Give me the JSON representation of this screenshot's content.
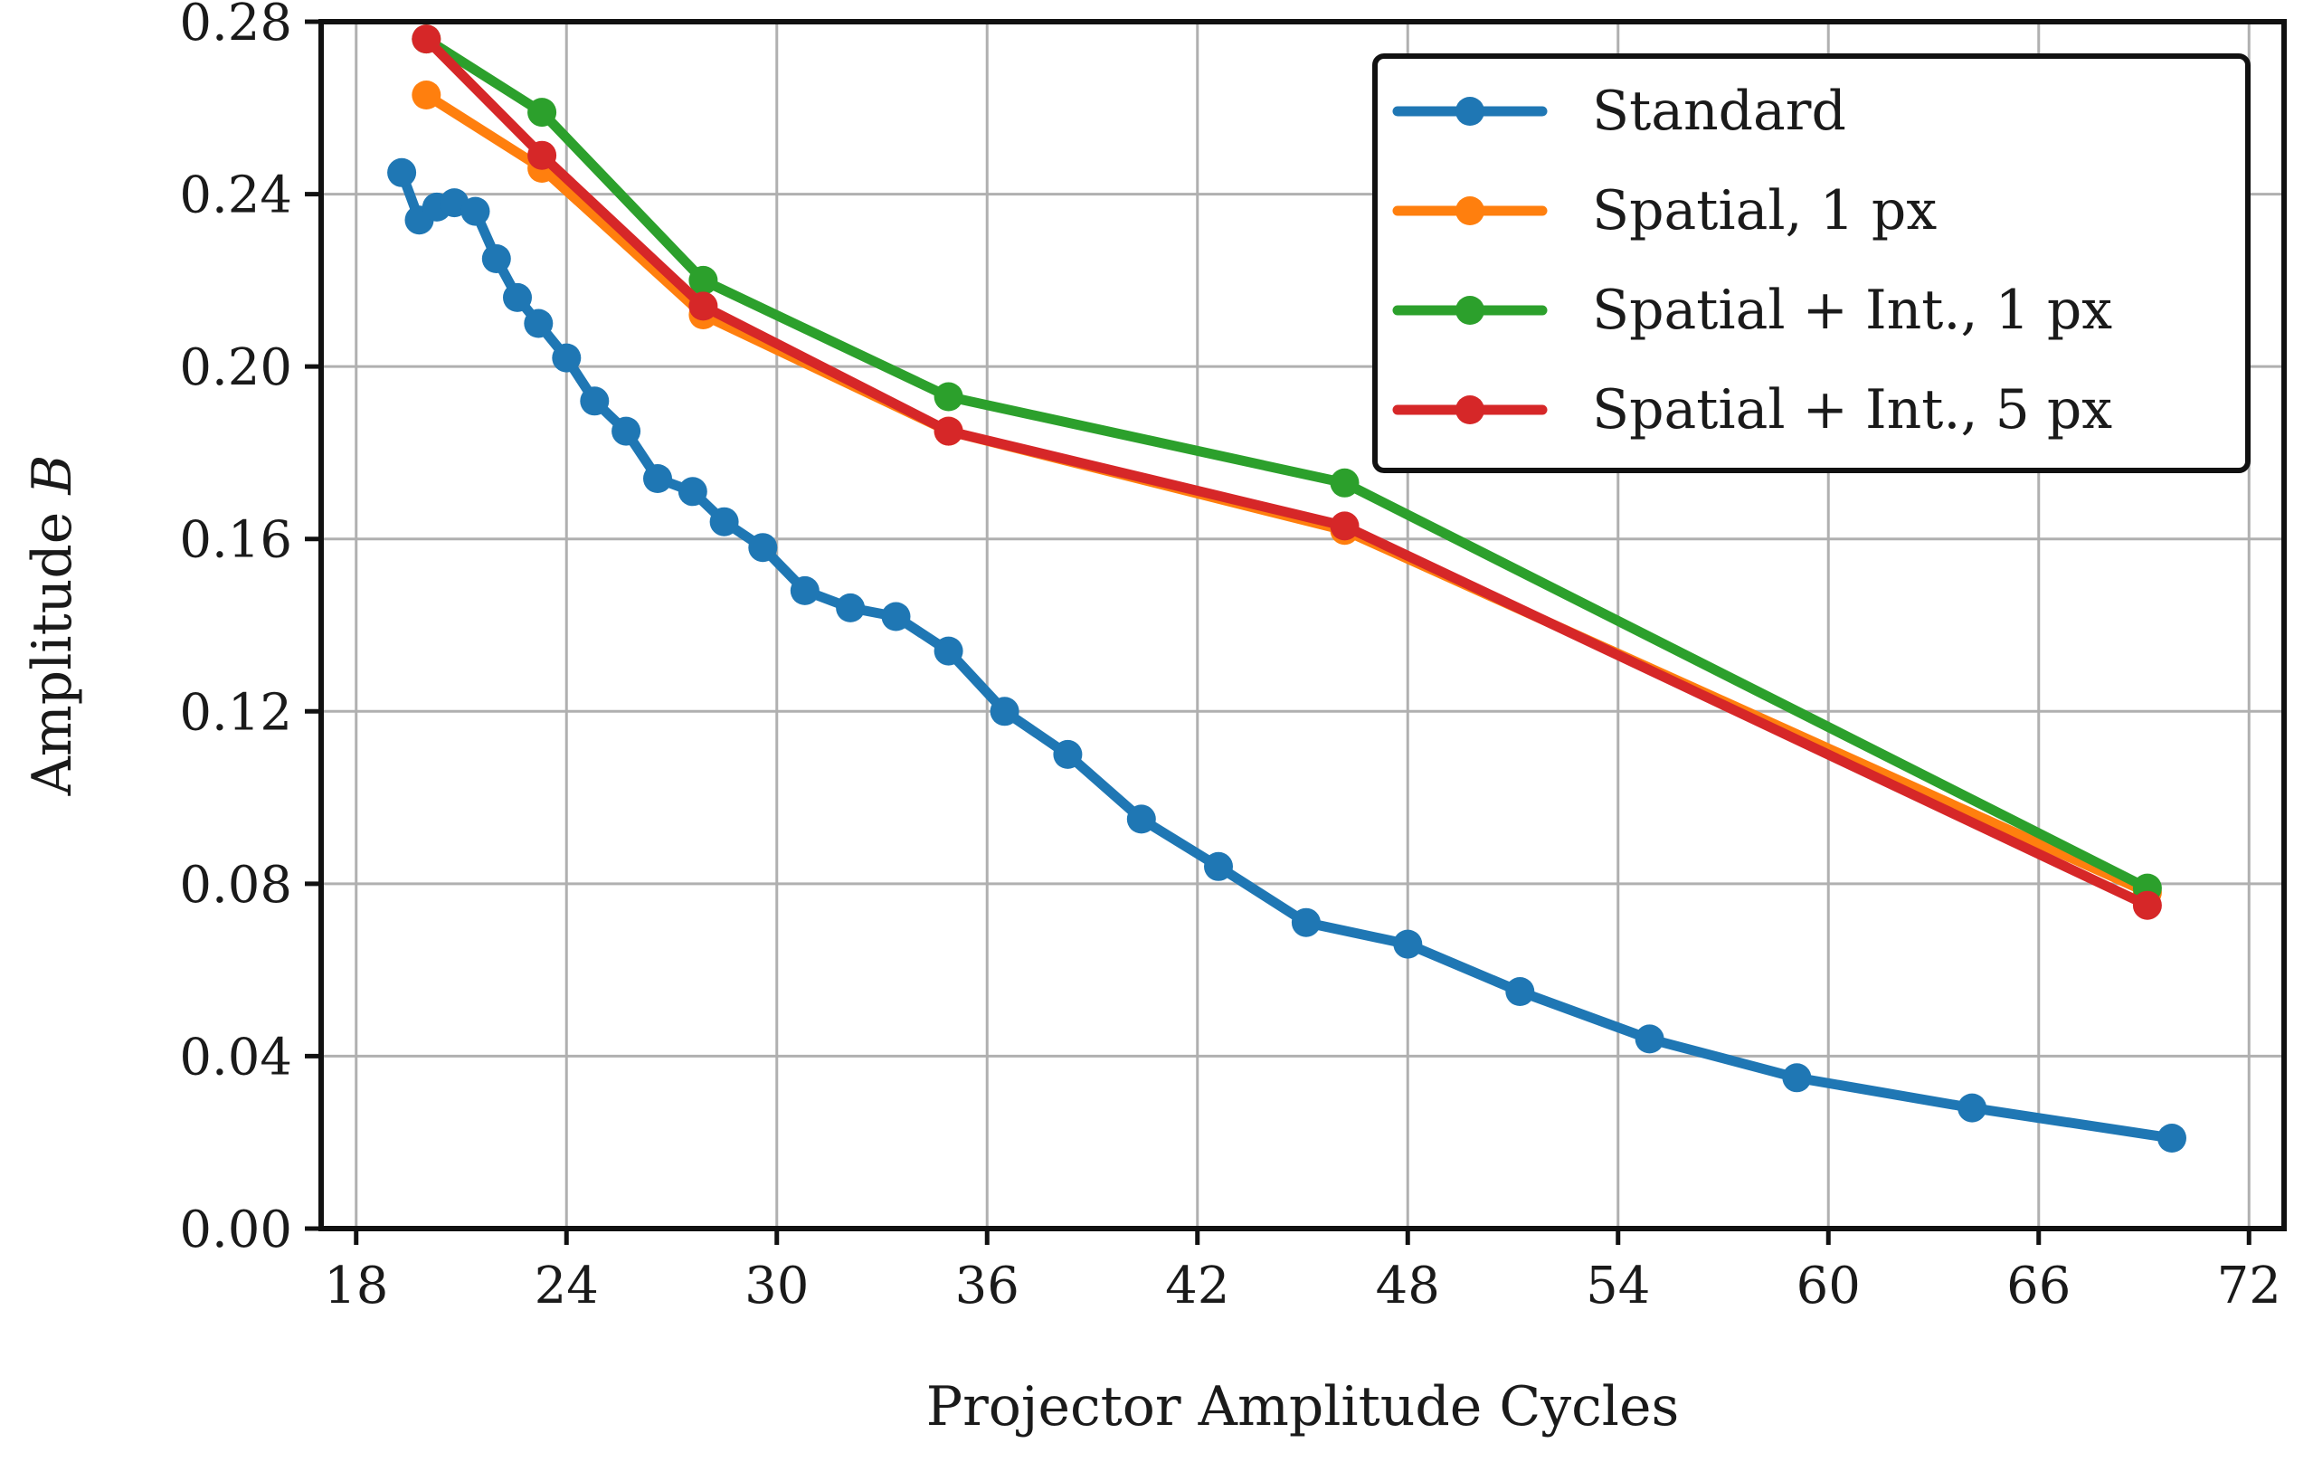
{
  "chart_data": {
    "type": "line",
    "title": "",
    "xlabel": "Projector Amplitude Cycles",
    "ylabel_prefix": "Amplitude ",
    "ylabel_symbol": "B",
    "xlim": [
      17,
      73
    ],
    "ylim": [
      0,
      0.28
    ],
    "xticks": [
      18,
      24,
      30,
      36,
      42,
      48,
      54,
      60,
      66,
      72
    ],
    "yticks": [
      0,
      0.04,
      0.08,
      0.12,
      0.16,
      0.2,
      0.24,
      0.28
    ],
    "xtick_labels": [
      "18",
      "24",
      "30",
      "36",
      "42",
      "48",
      "54",
      "60",
      "66",
      "72"
    ],
    "ytick_labels": [
      "0.00",
      "0.04",
      "0.08",
      "0.12",
      "0.16",
      "0.20",
      "0.24",
      "0.28"
    ],
    "grid": true,
    "legend_position": "top-right",
    "series": [
      {
        "name": "Standard",
        "color": "#1f77b4",
        "x": [
          19.3,
          19.8,
          20.3,
          20.8,
          21.4,
          22.0,
          22.6,
          23.2,
          24.0,
          24.8,
          25.7,
          26.6,
          27.6,
          28.5,
          29.6,
          30.8,
          32.1,
          33.4,
          34.9,
          36.5,
          38.3,
          40.4,
          42.6,
          45.1,
          48.0,
          51.2,
          54.9,
          59.1,
          64.1,
          69.8
        ],
        "y": [
          0.245,
          0.234,
          0.237,
          0.238,
          0.236,
          0.225,
          0.216,
          0.21,
          0.202,
          0.192,
          0.185,
          0.174,
          0.171,
          0.164,
          0.158,
          0.148,
          0.144,
          0.142,
          0.134,
          0.12,
          0.11,
          0.095,
          0.084,
          0.071,
          0.066,
          0.055,
          0.044,
          0.035,
          0.028,
          0.021
        ]
      },
      {
        "name": "Spatial, 1 px",
        "color": "#ff7f0e",
        "x": [
          20.0,
          23.3,
          27.9,
          34.9,
          46.2,
          69.1
        ],
        "y": [
          0.263,
          0.246,
          0.212,
          0.185,
          0.162,
          0.078
        ]
      },
      {
        "name": "Spatial + Int., 1 px",
        "color": "#2ca02c",
        "x": [
          20.0,
          23.3,
          27.9,
          34.9,
          46.2,
          69.1
        ],
        "y": [
          0.276,
          0.259,
          0.22,
          0.193,
          0.173,
          0.079
        ]
      },
      {
        "name": "Spatial + Int., 5 px",
        "color": "#d62728",
        "x": [
          20.0,
          23.3,
          27.9,
          34.9,
          46.2,
          69.1
        ],
        "y": [
          0.276,
          0.249,
          0.214,
          0.185,
          0.163,
          0.075
        ]
      }
    ]
  }
}
